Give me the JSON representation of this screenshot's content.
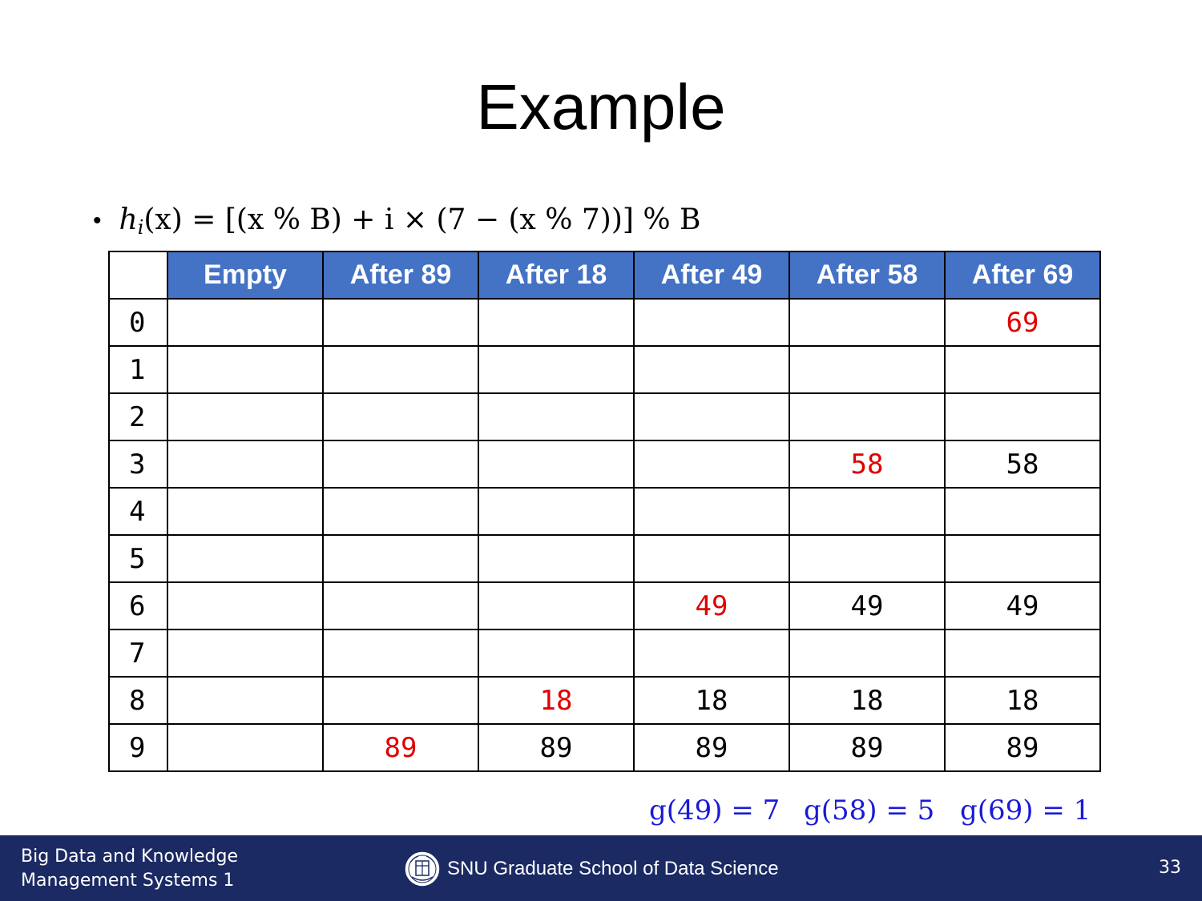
{
  "slide": {
    "title": "Example",
    "page_number": "33"
  },
  "formula": {
    "lhs_func": "h",
    "lhs_sub": "i",
    "lhs_arg": "(x)",
    "rhs": "= [(x % B) + i × (7 − (x % 7))] % B"
  },
  "table": {
    "columns": [
      "Empty",
      "After 89",
      "After 18",
      "After 49",
      "After 58",
      "After 69"
    ],
    "rows": [
      {
        "index": "0",
        "cells": [
          "",
          "",
          "",
          "",
          "",
          "69"
        ],
        "new_col": 5
      },
      {
        "index": "1",
        "cells": [
          "",
          "",
          "",
          "",
          "",
          ""
        ],
        "new_col": -1
      },
      {
        "index": "2",
        "cells": [
          "",
          "",
          "",
          "",
          "",
          ""
        ],
        "new_col": -1
      },
      {
        "index": "3",
        "cells": [
          "",
          "",
          "",
          "",
          "58",
          "58"
        ],
        "new_col": 4
      },
      {
        "index": "4",
        "cells": [
          "",
          "",
          "",
          "",
          "",
          ""
        ],
        "new_col": -1
      },
      {
        "index": "5",
        "cells": [
          "",
          "",
          "",
          "",
          "",
          ""
        ],
        "new_col": -1
      },
      {
        "index": "6",
        "cells": [
          "",
          "",
          "",
          "49",
          "49",
          "49"
        ],
        "new_col": 3
      },
      {
        "index": "7",
        "cells": [
          "",
          "",
          "",
          "",
          "",
          ""
        ],
        "new_col": -1
      },
      {
        "index": "8",
        "cells": [
          "",
          "",
          "18",
          "18",
          "18",
          "18"
        ],
        "new_col": 2
      },
      {
        "index": "9",
        "cells": [
          "",
          "89",
          "89",
          "89",
          "89",
          "89"
        ],
        "new_col": 1
      }
    ]
  },
  "g_values": [
    "g(49) = 7",
    "g(58) = 5",
    "g(69) = 1"
  ],
  "footer": {
    "left_line1": "Big Data and Knowledge",
    "left_line2": "Management Systems 1",
    "center": "SNU Graduate School of Data Science",
    "logo_icon": "snu-emblem-icon"
  },
  "colors": {
    "header_bg": "#4472c4",
    "new_value": "#e00000",
    "g_text": "#1a1ad6",
    "footer_bg": "#1b2a63"
  }
}
